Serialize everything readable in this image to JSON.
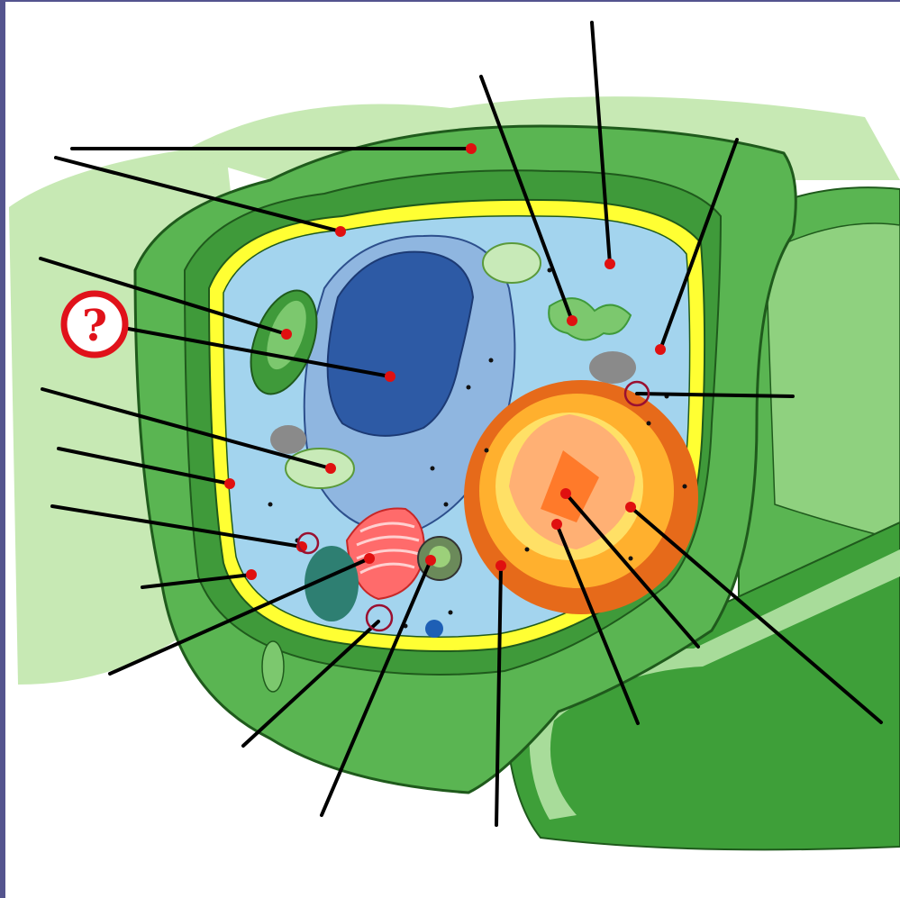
{
  "diagram": {
    "kind": "plant-cell-labeling-worksheet",
    "question_marker": "?",
    "colors": {
      "background_light_green": "#c7e9b4",
      "cell_wall_green": "#5ab552",
      "membrane_yellow": "#ffff33",
      "cytoplasm_blue": "#a3d4ee",
      "nucleus_dark_blue": "#2d5aa5",
      "vacuole_blue": "#8fb6e0",
      "chloroplast_green": "#3f9a3a",
      "golgi_red": "#ff5a5a",
      "mitochondria_orange": "#f5a623",
      "label_dot_red": "#e01010",
      "leader_line": "#000000",
      "question_ring_red": "#e0121a"
    },
    "label_pointers": [
      {
        "id": "p1"
      },
      {
        "id": "p2"
      },
      {
        "id": "p3"
      },
      {
        "id": "p4"
      },
      {
        "id": "p5"
      },
      {
        "id": "p6"
      },
      {
        "id": "p7"
      },
      {
        "id": "p8"
      },
      {
        "id": "p9"
      },
      {
        "id": "p10"
      },
      {
        "id": "p11"
      },
      {
        "id": "p12"
      },
      {
        "id": "p13"
      },
      {
        "id": "p14"
      },
      {
        "id": "p15"
      },
      {
        "id": "p16"
      },
      {
        "id": "p17"
      },
      {
        "id": "p18"
      },
      {
        "id": "p19"
      },
      {
        "id": "p20"
      }
    ]
  }
}
